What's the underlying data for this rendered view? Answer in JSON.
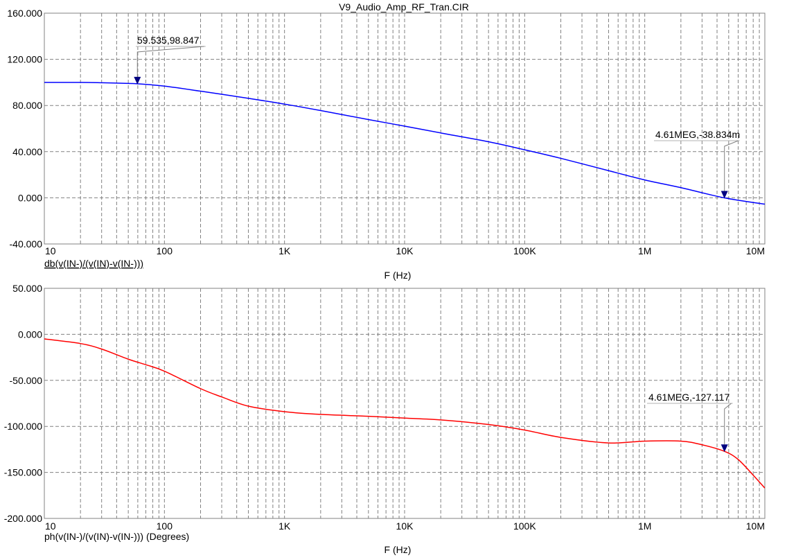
{
  "window": {
    "title": "V9_Audio_Amp_RF_Tran.CIR"
  },
  "chart_data": [
    {
      "type": "line",
      "xscale": "log",
      "xlim": [
        10,
        10000000
      ],
      "ylim": [
        -40,
        160
      ],
      "grid": true,
      "xlabel": "F (Hz)",
      "ylabel": "db(v(IN-)/(v(IN)-v(IN-)))",
      "color": "#0000ff",
      "xticks": [
        "10",
        "100",
        "1K",
        "10K",
        "100K",
        "1M",
        "10M"
      ],
      "yticks": [
        "160.000",
        "120.000",
        "80.000",
        "40.000",
        "0.000",
        "-40.000"
      ],
      "series": [
        {
          "x": [
            10,
            20,
            30,
            50,
            59.535,
            100,
            200,
            500,
            1000,
            2000,
            5000,
            10000,
            20000,
            50000,
            100000,
            200000,
            500000,
            1000000,
            2000000,
            4610000,
            10000000
          ],
          "y": [
            100,
            100,
            99.7,
            99.1,
            98.847,
            96.8,
            92.4,
            86.2,
            81.2,
            75.6,
            67.8,
            62.1,
            56.2,
            48.6,
            41.6,
            34.2,
            23.5,
            15.5,
            8.8,
            -0.039,
            -5.5
          ]
        }
      ],
      "annotations": [
        {
          "x": 59.535,
          "y": 98.847,
          "text": "59.535,98.847"
        },
        {
          "x": 4610000,
          "y": -0.039,
          "text": "4.61MEG,-38.834m"
        }
      ]
    },
    {
      "type": "line",
      "xscale": "log",
      "xlim": [
        10,
        10000000
      ],
      "ylim": [
        -200,
        50
      ],
      "grid": true,
      "xlabel": "F (Hz)",
      "ylabel": "ph(v(IN-)/(v(IN)-v(IN-))) (Degrees)",
      "color": "#ff0000",
      "xticks": [
        "10",
        "100",
        "1K",
        "10K",
        "100K",
        "1M",
        "10M"
      ],
      "yticks": [
        "50.000",
        "0.000",
        "-50.000",
        "-100.000",
        "-150.000",
        "-200.000"
      ],
      "series": [
        {
          "x": [
            10,
            20,
            30,
            50,
            70,
            100,
            200,
            300,
            500,
            1000,
            2000,
            5000,
            10000,
            20000,
            50000,
            100000,
            200000,
            500000,
            1000000,
            2000000,
            3000000,
            4610000,
            6000000,
            8000000,
            10000000
          ],
          "y": [
            -5,
            -10,
            -16,
            -27,
            -33,
            -40,
            -59,
            -68,
            -78,
            -84,
            -87,
            -89,
            -91,
            -93,
            -98,
            -104,
            -112,
            -118,
            -116,
            -116,
            -120,
            -127.117,
            -136,
            -153,
            -167
          ]
        }
      ],
      "annotations": [
        {
          "x": 4610000,
          "y": -127.117,
          "text": "4.61MEG,-127.117"
        }
      ]
    }
  ]
}
